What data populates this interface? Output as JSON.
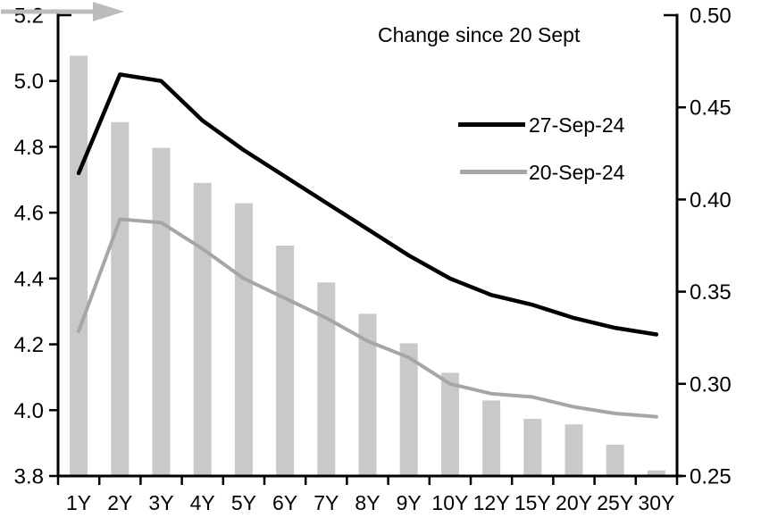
{
  "chart_data": {
    "type": "combo",
    "categories": [
      "1Y",
      "2Y",
      "3Y",
      "4Y",
      "5Y",
      "6Y",
      "7Y",
      "8Y",
      "9Y",
      "10Y",
      "12Y",
      "15Y",
      "20Y",
      "25Y",
      "30Y"
    ],
    "series": [
      {
        "name": "Change since 20 Sept",
        "type": "bar",
        "axis": "right",
        "color": "#c9c9c9",
        "values": [
          0.478,
          0.442,
          0.428,
          0.409,
          0.398,
          0.375,
          0.355,
          0.338,
          0.322,
          0.306,
          0.291,
          0.281,
          0.278,
          0.267,
          0.253
        ]
      },
      {
        "name": "27-Sep-24",
        "type": "line",
        "axis": "left",
        "color": "#000000",
        "values": [
          4.72,
          5.02,
          5.0,
          4.88,
          4.79,
          4.71,
          4.63,
          4.55,
          4.47,
          4.4,
          4.35,
          4.32,
          4.28,
          4.25,
          4.23
        ]
      },
      {
        "name": "20-Sep-24",
        "type": "line",
        "axis": "left",
        "color": "#a6a6a6",
        "values": [
          4.24,
          4.58,
          4.57,
          4.49,
          4.4,
          4.34,
          4.28,
          4.21,
          4.16,
          4.08,
          4.05,
          4.04,
          4.01,
          3.99,
          3.98
        ]
      }
    ],
    "left_axis": {
      "min": 3.8,
      "max": 5.2,
      "step": 0.2,
      "tick_labels": [
        "5.2",
        "5.0",
        "4.8",
        "4.6",
        "4.4",
        "4.2",
        "4.0",
        "3.8"
      ]
    },
    "right_axis": {
      "min": 0.25,
      "max": 0.5,
      "step": 0.05,
      "tick_labels": [
        "0.50",
        "0.45",
        "0.40",
        "0.35",
        "0.30",
        "0.25"
      ]
    },
    "legend": {
      "title": "Change since 20 Sept",
      "arrow_color": "#bcbcbc",
      "position": "top-right"
    },
    "grid": "off",
    "axis_color": "#000000"
  }
}
